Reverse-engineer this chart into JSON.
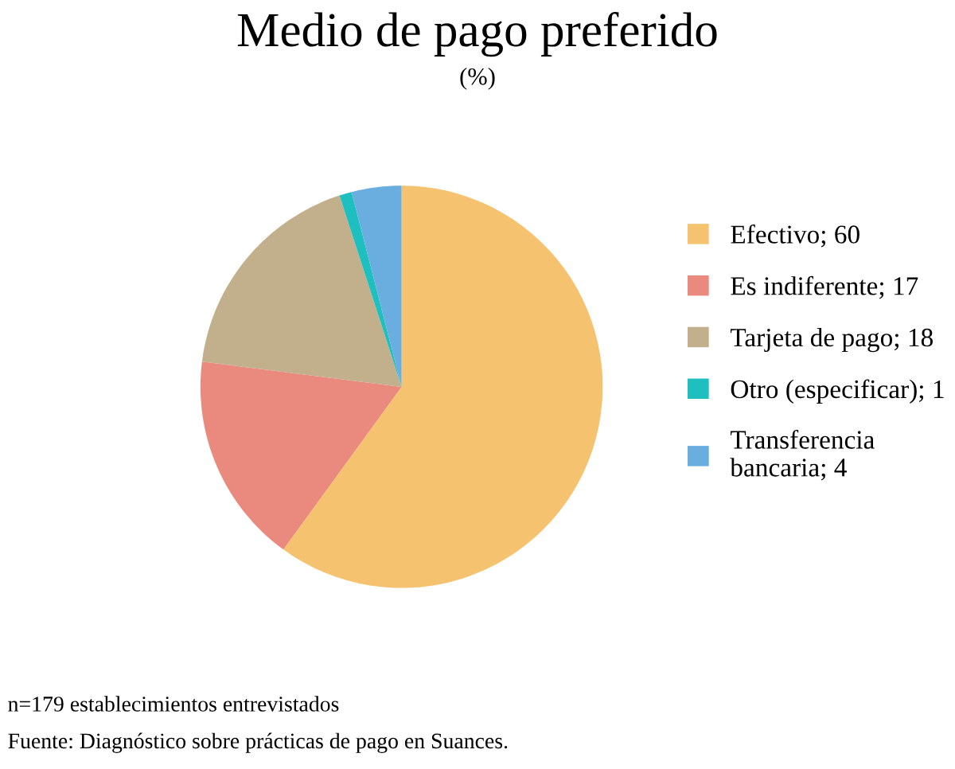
{
  "chart_data": {
    "type": "pie",
    "title": "Medio de pago preferido",
    "subtitle": "(%)",
    "categories": [
      "Efectivo; 60",
      "Es indiferente; 17",
      "Tarjeta de pago; 18",
      "Otro (especificar); 1",
      "Transferencia\nbancaria; 4"
    ],
    "values": [
      60,
      17,
      18,
      1,
      4
    ],
    "colors": [
      "#f5c26f",
      "#ea8a7e",
      "#c2b08c",
      "#1fbfbf",
      "#6aaee0"
    ],
    "legend": "right",
    "annotations": [
      "n=179 establecimientos entrevistados",
      "Fuente: Diagnóstico sobre prácticas de pago en Suances."
    ]
  }
}
